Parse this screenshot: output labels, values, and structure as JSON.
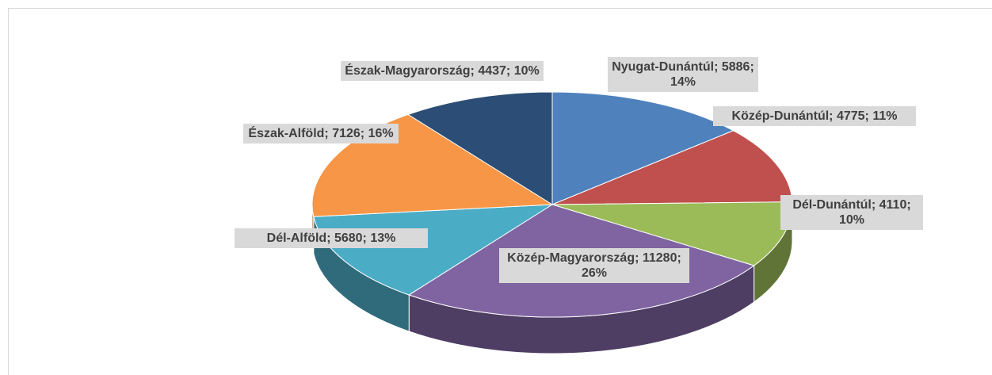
{
  "chart_data": {
    "type": "pie3d",
    "values": [
      5886,
      4775,
      4110,
      11280,
      5680,
      7126,
      4437
    ],
    "value_labels": [
      "Nyugat-Dunántúl; 5886; 14%",
      "Közép-Dunántúl; 4775; 11%",
      "Dél-Dunántúl; 4110; 10%",
      "Közép-Magyarország; 11280; 26%",
      "Dél-Alföld; 5680; 13%",
      "Észak-Alföld; 7126; 16%",
      "Észak-Magyarország; 4437; 10%"
    ],
    "colors": [
      "#4f81bd",
      "#c0504d",
      "#9bbb59",
      "#8064a2",
      "#4bacc6",
      "#f79646",
      "#2c4d75"
    ]
  }
}
